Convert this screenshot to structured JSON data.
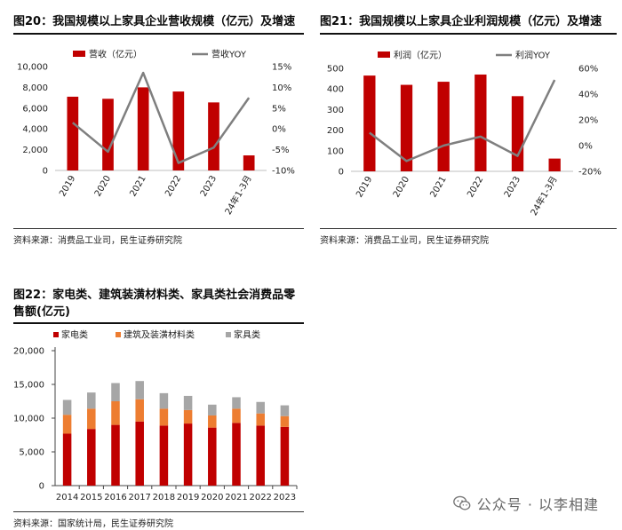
{
  "panels": {
    "p20": {
      "title": "图20：我国规模以上家具企业营收规模（亿元）及增速",
      "source": "资料来源：消费品工业司，民生证券研究院"
    },
    "p21": {
      "title": "图21：我国规模以上家具企业利润规模（亿元）及增速",
      "source": "资料来源：消费品工业司，民生证券研究院"
    },
    "p22": {
      "title": "图22：家电类、建筑装潢材料类、家具类社会消费品零售额(亿元)",
      "source": "资料来源：国家统计局，民生证券研究院"
    }
  },
  "watermark": {
    "text": "公众号 · 以李相建",
    "icon": "wechat-icon"
  },
  "colors": {
    "red": "#C00000",
    "gray": "#7F7F7F",
    "orange": "#ED7D31",
    "lightgray": "#A6A6A6"
  },
  "chart_data": [
    {
      "id": "p20",
      "type": "bar",
      "categories": [
        "2019",
        "2020",
        "2021",
        "2022",
        "2023",
        "24年1-3月"
      ],
      "series": [
        {
          "name": "营收（亿元）",
          "type": "bar",
          "axis": "left",
          "values": [
            7100,
            6900,
            8000,
            7600,
            6550,
            1450
          ]
        },
        {
          "name": "营收YOY",
          "type": "line",
          "axis": "right",
          "values": [
            1.5,
            -5.5,
            13.5,
            -8.2,
            -4.5,
            7.5
          ]
        }
      ],
      "y_left": {
        "range": [
          0,
          10000
        ],
        "ticks": [
          "0",
          "2,000",
          "4,000",
          "6,000",
          "8,000",
          "10,000"
        ]
      },
      "y_right": {
        "range": [
          -10,
          15
        ],
        "ticks": [
          "-10%",
          "-5%",
          "0%",
          "5%",
          "10%",
          "15%"
        ]
      },
      "legend": "top"
    },
    {
      "id": "p21",
      "type": "bar",
      "categories": [
        "2019",
        "2020",
        "2021",
        "2022",
        "2023",
        "24年1-3月"
      ],
      "series": [
        {
          "name": "利润（亿元）",
          "type": "bar",
          "axis": "left",
          "values": [
            465,
            420,
            435,
            470,
            365,
            62
          ]
        },
        {
          "name": "利润YOY",
          "type": "line",
          "axis": "right",
          "values": [
            10,
            -12,
            0,
            7,
            -8,
            51
          ]
        }
      ],
      "y_left": {
        "range": [
          0,
          500
        ],
        "ticks": [
          "0",
          "100",
          "200",
          "300",
          "400",
          "500"
        ]
      },
      "y_right": {
        "range": [
          -20,
          60
        ],
        "ticks": [
          "-20%",
          "0%",
          "20%",
          "40%",
          "60%"
        ]
      },
      "legend": "top"
    },
    {
      "id": "p22",
      "type": "bar",
      "stacked": true,
      "categories": [
        "2014",
        "2015",
        "2016",
        "2017",
        "2018",
        "2019",
        "2020",
        "2021",
        "2022",
        "2023"
      ],
      "series": [
        {
          "name": "家电类",
          "values": [
            7700,
            8400,
            9000,
            9500,
            8900,
            9200,
            8600,
            9300,
            8900,
            8700
          ]
        },
        {
          "name": "建筑及装潢材料类",
          "values": [
            2800,
            3000,
            3500,
            3300,
            2500,
            2000,
            1800,
            2100,
            1800,
            1600
          ]
        },
        {
          "name": "家具类",
          "values": [
            2200,
            2400,
            2700,
            2700,
            2300,
            2100,
            1600,
            1700,
            1700,
            1600
          ]
        }
      ],
      "y_left": {
        "range": [
          0,
          20000
        ],
        "ticks": [
          "0",
          "5,000",
          "10,000",
          "15,000",
          "20,000"
        ]
      },
      "legend": "top-left"
    }
  ]
}
